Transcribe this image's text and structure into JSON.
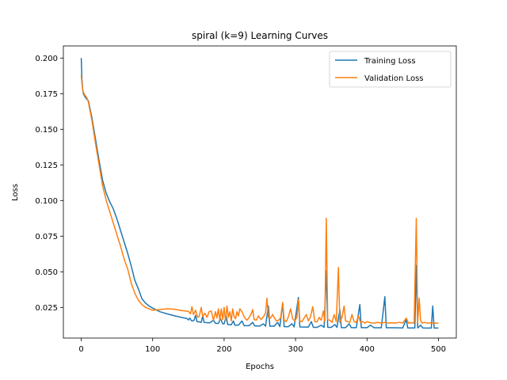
{
  "chart_data": {
    "type": "line",
    "title": "spiral (k=9) Learning Curves",
    "xlabel": "Epochs",
    "ylabel": "Loss",
    "xlim": [
      -25,
      525
    ],
    "ylim": [
      0.0035,
      0.2085
    ],
    "xticks": [
      0,
      100,
      200,
      300,
      400,
      500
    ],
    "xtick_labels": [
      "0",
      "100",
      "200",
      "300",
      "400",
      "500"
    ],
    "yticks": [
      0.025,
      0.05,
      0.075,
      0.1,
      0.125,
      0.15,
      0.175,
      0.2
    ],
    "ytick_labels": [
      "0.025",
      "0.050",
      "0.075",
      "0.100",
      "0.125",
      "0.150",
      "0.175",
      "0.200"
    ],
    "grid": false,
    "legend_position": "upper right",
    "series": [
      {
        "name": "Training Loss",
        "color": "#1f77b4",
        "points": [
          [
            0,
            0.2
          ],
          [
            1,
            0.185
          ],
          [
            2,
            0.178
          ],
          [
            3,
            0.175
          ],
          [
            5,
            0.173
          ],
          [
            8,
            0.171
          ],
          [
            10,
            0.17
          ],
          [
            15,
            0.158
          ],
          [
            20,
            0.143
          ],
          [
            25,
            0.128
          ],
          [
            30,
            0.114
          ],
          [
            35,
            0.105
          ],
          [
            40,
            0.099
          ],
          [
            45,
            0.094
          ],
          [
            50,
            0.087
          ],
          [
            55,
            0.079
          ],
          [
            60,
            0.071
          ],
          [
            65,
            0.063
          ],
          [
            70,
            0.054
          ],
          [
            75,
            0.044
          ],
          [
            80,
            0.038
          ],
          [
            85,
            0.031
          ],
          [
            90,
            0.028
          ],
          [
            95,
            0.026
          ],
          [
            100,
            0.0245
          ],
          [
            110,
            0.022
          ],
          [
            120,
            0.0205
          ],
          [
            130,
            0.0192
          ],
          [
            140,
            0.018
          ],
          [
            148,
            0.0172
          ],
          [
            150,
            0.0162
          ],
          [
            152,
            0.0175
          ],
          [
            154,
            0.0158
          ],
          [
            156,
            0.0155
          ],
          [
            158,
            0.016
          ],
          [
            160,
            0.0195
          ],
          [
            162,
            0.015
          ],
          [
            165,
            0.0148
          ],
          [
            168,
            0.0145
          ],
          [
            170,
            0.019
          ],
          [
            172,
            0.0145
          ],
          [
            175,
            0.0143
          ],
          [
            180,
            0.0142
          ],
          [
            185,
            0.016
          ],
          [
            188,
            0.0138
          ],
          [
            192,
            0.0138
          ],
          [
            195,
            0.017
          ],
          [
            198,
            0.0135
          ],
          [
            200,
            0.0135
          ],
          [
            203,
            0.019
          ],
          [
            205,
            0.013
          ],
          [
            210,
            0.0128
          ],
          [
            213,
            0.0155
          ],
          [
            215,
            0.0125
          ],
          [
            220,
            0.0125
          ],
          [
            225,
            0.0155
          ],
          [
            228,
            0.0122
          ],
          [
            235,
            0.0122
          ],
          [
            240,
            0.0145
          ],
          [
            243,
            0.012
          ],
          [
            250,
            0.012
          ],
          [
            255,
            0.0135
          ],
          [
            258,
            0.0118
          ],
          [
            262,
            0.026
          ],
          [
            264,
            0.0118
          ],
          [
            270,
            0.0118
          ],
          [
            275,
            0.0145
          ],
          [
            278,
            0.0115
          ],
          [
            282,
            0.028
          ],
          [
            284,
            0.0115
          ],
          [
            290,
            0.0115
          ],
          [
            295,
            0.0135
          ],
          [
            298,
            0.0113
          ],
          [
            304,
            0.032
          ],
          [
            306,
            0.0113
          ],
          [
            312,
            0.0112
          ],
          [
            318,
            0.0112
          ],
          [
            322,
            0.015
          ],
          [
            325,
            0.011
          ],
          [
            330,
            0.011
          ],
          [
            336,
            0.0125
          ],
          [
            340,
            0.011
          ],
          [
            343,
            0.0505
          ],
          [
            345,
            0.011
          ],
          [
            350,
            0.011
          ],
          [
            355,
            0.013
          ],
          [
            358,
            0.011
          ],
          [
            362,
            0.0235
          ],
          [
            364,
            0.0108
          ],
          [
            370,
            0.0108
          ],
          [
            375,
            0.0135
          ],
          [
            378,
            0.0108
          ],
          [
            385,
            0.0108
          ],
          [
            390,
            0.027
          ],
          [
            392,
            0.0108
          ],
          [
            400,
            0.0108
          ],
          [
            405,
            0.0125
          ],
          [
            410,
            0.0107
          ],
          [
            420,
            0.0107
          ],
          [
            425,
            0.0325
          ],
          [
            427,
            0.0107
          ],
          [
            440,
            0.0107
          ],
          [
            450,
            0.0106
          ],
          [
            455,
            0.0165
          ],
          [
            457,
            0.0106
          ],
          [
            463,
            0.0106
          ],
          [
            467,
            0.0106
          ],
          [
            469,
            0.0545
          ],
          [
            471,
            0.0106
          ],
          [
            475,
            0.0125
          ],
          [
            478,
            0.0106
          ],
          [
            485,
            0.0105
          ],
          [
            490,
            0.0105
          ],
          [
            492,
            0.026
          ],
          [
            494,
            0.0105
          ],
          [
            500,
            0.0105
          ]
        ]
      },
      {
        "name": "Validation Loss",
        "color": "#ff7f0e",
        "points": [
          [
            0,
            0.188
          ],
          [
            1,
            0.182
          ],
          [
            2,
            0.178
          ],
          [
            3,
            0.176
          ],
          [
            5,
            0.174
          ],
          [
            8,
            0.172
          ],
          [
            10,
            0.169
          ],
          [
            15,
            0.156
          ],
          [
            20,
            0.14
          ],
          [
            25,
            0.125
          ],
          [
            30,
            0.11
          ],
          [
            35,
            0.1
          ],
          [
            40,
            0.092
          ],
          [
            45,
            0.084
          ],
          [
            50,
            0.076
          ],
          [
            55,
            0.068
          ],
          [
            60,
            0.059
          ],
          [
            65,
            0.052
          ],
          [
            70,
            0.042
          ],
          [
            75,
            0.035
          ],
          [
            80,
            0.03
          ],
          [
            85,
            0.027
          ],
          [
            90,
            0.025
          ],
          [
            95,
            0.024
          ],
          [
            100,
            0.023
          ],
          [
            110,
            0.0235
          ],
          [
            120,
            0.024
          ],
          [
            130,
            0.0238
          ],
          [
            140,
            0.0228
          ],
          [
            145,
            0.0225
          ],
          [
            150,
            0.0222
          ],
          [
            153,
            0.0205
          ],
          [
            155,
            0.0255
          ],
          [
            157,
            0.02
          ],
          [
            160,
            0.023
          ],
          [
            163,
            0.018
          ],
          [
            165,
            0.0185
          ],
          [
            168,
            0.025
          ],
          [
            170,
            0.0185
          ],
          [
            173,
            0.021
          ],
          [
            176,
            0.018
          ],
          [
            179,
            0.022
          ],
          [
            182,
            0.0225
          ],
          [
            185,
            0.016
          ],
          [
            188,
            0.022
          ],
          [
            190,
            0.0175
          ],
          [
            192,
            0.024
          ],
          [
            194,
            0.016
          ],
          [
            196,
            0.024
          ],
          [
            198,
            0.0165
          ],
          [
            200,
            0.025
          ],
          [
            202,
            0.0155
          ],
          [
            204,
            0.026
          ],
          [
            206,
            0.018
          ],
          [
            208,
            0.022
          ],
          [
            210,
            0.0155
          ],
          [
            212,
            0.024
          ],
          [
            214,
            0.0185
          ],
          [
            216,
            0.017
          ],
          [
            218,
            0.022
          ],
          [
            220,
            0.019
          ],
          [
            222,
            0.024
          ],
          [
            225,
            0.022
          ],
          [
            228,
            0.0185
          ],
          [
            230,
            0.017
          ],
          [
            232,
            0.016
          ],
          [
            235,
            0.018
          ],
          [
            238,
            0.0205
          ],
          [
            240,
            0.0235
          ],
          [
            242,
            0.0165
          ],
          [
            245,
            0.016
          ],
          [
            248,
            0.019
          ],
          [
            250,
            0.0175
          ],
          [
            252,
            0.0165
          ],
          [
            255,
            0.0185
          ],
          [
            258,
            0.021
          ],
          [
            260,
            0.0315
          ],
          [
            262,
            0.018
          ],
          [
            265,
            0.0175
          ],
          [
            268,
            0.02
          ],
          [
            270,
            0.018
          ],
          [
            273,
            0.0155
          ],
          [
            276,
            0.016
          ],
          [
            279,
            0.0175
          ],
          [
            282,
            0.0285
          ],
          [
            284,
            0.016
          ],
          [
            287,
            0.015
          ],
          [
            290,
            0.0185
          ],
          [
            293,
            0.024
          ],
          [
            296,
            0.017
          ],
          [
            299,
            0.0155
          ],
          [
            302,
            0.018
          ],
          [
            304,
            0.0305
          ],
          [
            306,
            0.0155
          ],
          [
            309,
            0.015
          ],
          [
            312,
            0.0175
          ],
          [
            315,
            0.02
          ],
          [
            318,
            0.0155
          ],
          [
            321,
            0.0185
          ],
          [
            324,
            0.0255
          ],
          [
            327,
            0.015
          ],
          [
            330,
            0.0148
          ],
          [
            333,
            0.018
          ],
          [
            336,
            0.016
          ],
          [
            339,
            0.0225
          ],
          [
            341,
            0.015
          ],
          [
            343,
            0.0875
          ],
          [
            345,
            0.0165
          ],
          [
            348,
            0.016
          ],
          [
            351,
            0.0145
          ],
          [
            354,
            0.02
          ],
          [
            357,
            0.015
          ],
          [
            360,
            0.053
          ],
          [
            362,
            0.0145
          ],
          [
            365,
            0.018
          ],
          [
            368,
            0.026
          ],
          [
            370,
            0.0155
          ],
          [
            373,
            0.015
          ],
          [
            376,
            0.0145
          ],
          [
            379,
            0.02
          ],
          [
            382,
            0.015
          ],
          [
            385,
            0.0145
          ],
          [
            388,
            0.019
          ],
          [
            391,
            0.0145
          ],
          [
            394,
            0.015
          ],
          [
            397,
            0.014
          ],
          [
            400,
            0.015
          ],
          [
            405,
            0.0142
          ],
          [
            410,
            0.014
          ],
          [
            415,
            0.0145
          ],
          [
            420,
            0.014
          ],
          [
            425,
            0.0145
          ],
          [
            430,
            0.014
          ],
          [
            435,
            0.0142
          ],
          [
            440,
            0.014
          ],
          [
            445,
            0.0145
          ],
          [
            450,
            0.014
          ],
          [
            455,
            0.0175
          ],
          [
            458,
            0.014
          ],
          [
            462,
            0.0142
          ],
          [
            466,
            0.014
          ],
          [
            469,
            0.0875
          ],
          [
            471,
            0.0145
          ],
          [
            473,
            0.0315
          ],
          [
            475,
            0.016
          ],
          [
            477,
            0.014
          ],
          [
            480,
            0.0145
          ],
          [
            485,
            0.014
          ],
          [
            490,
            0.0142
          ],
          [
            495,
            0.014
          ],
          [
            500,
            0.014
          ]
        ]
      }
    ]
  }
}
